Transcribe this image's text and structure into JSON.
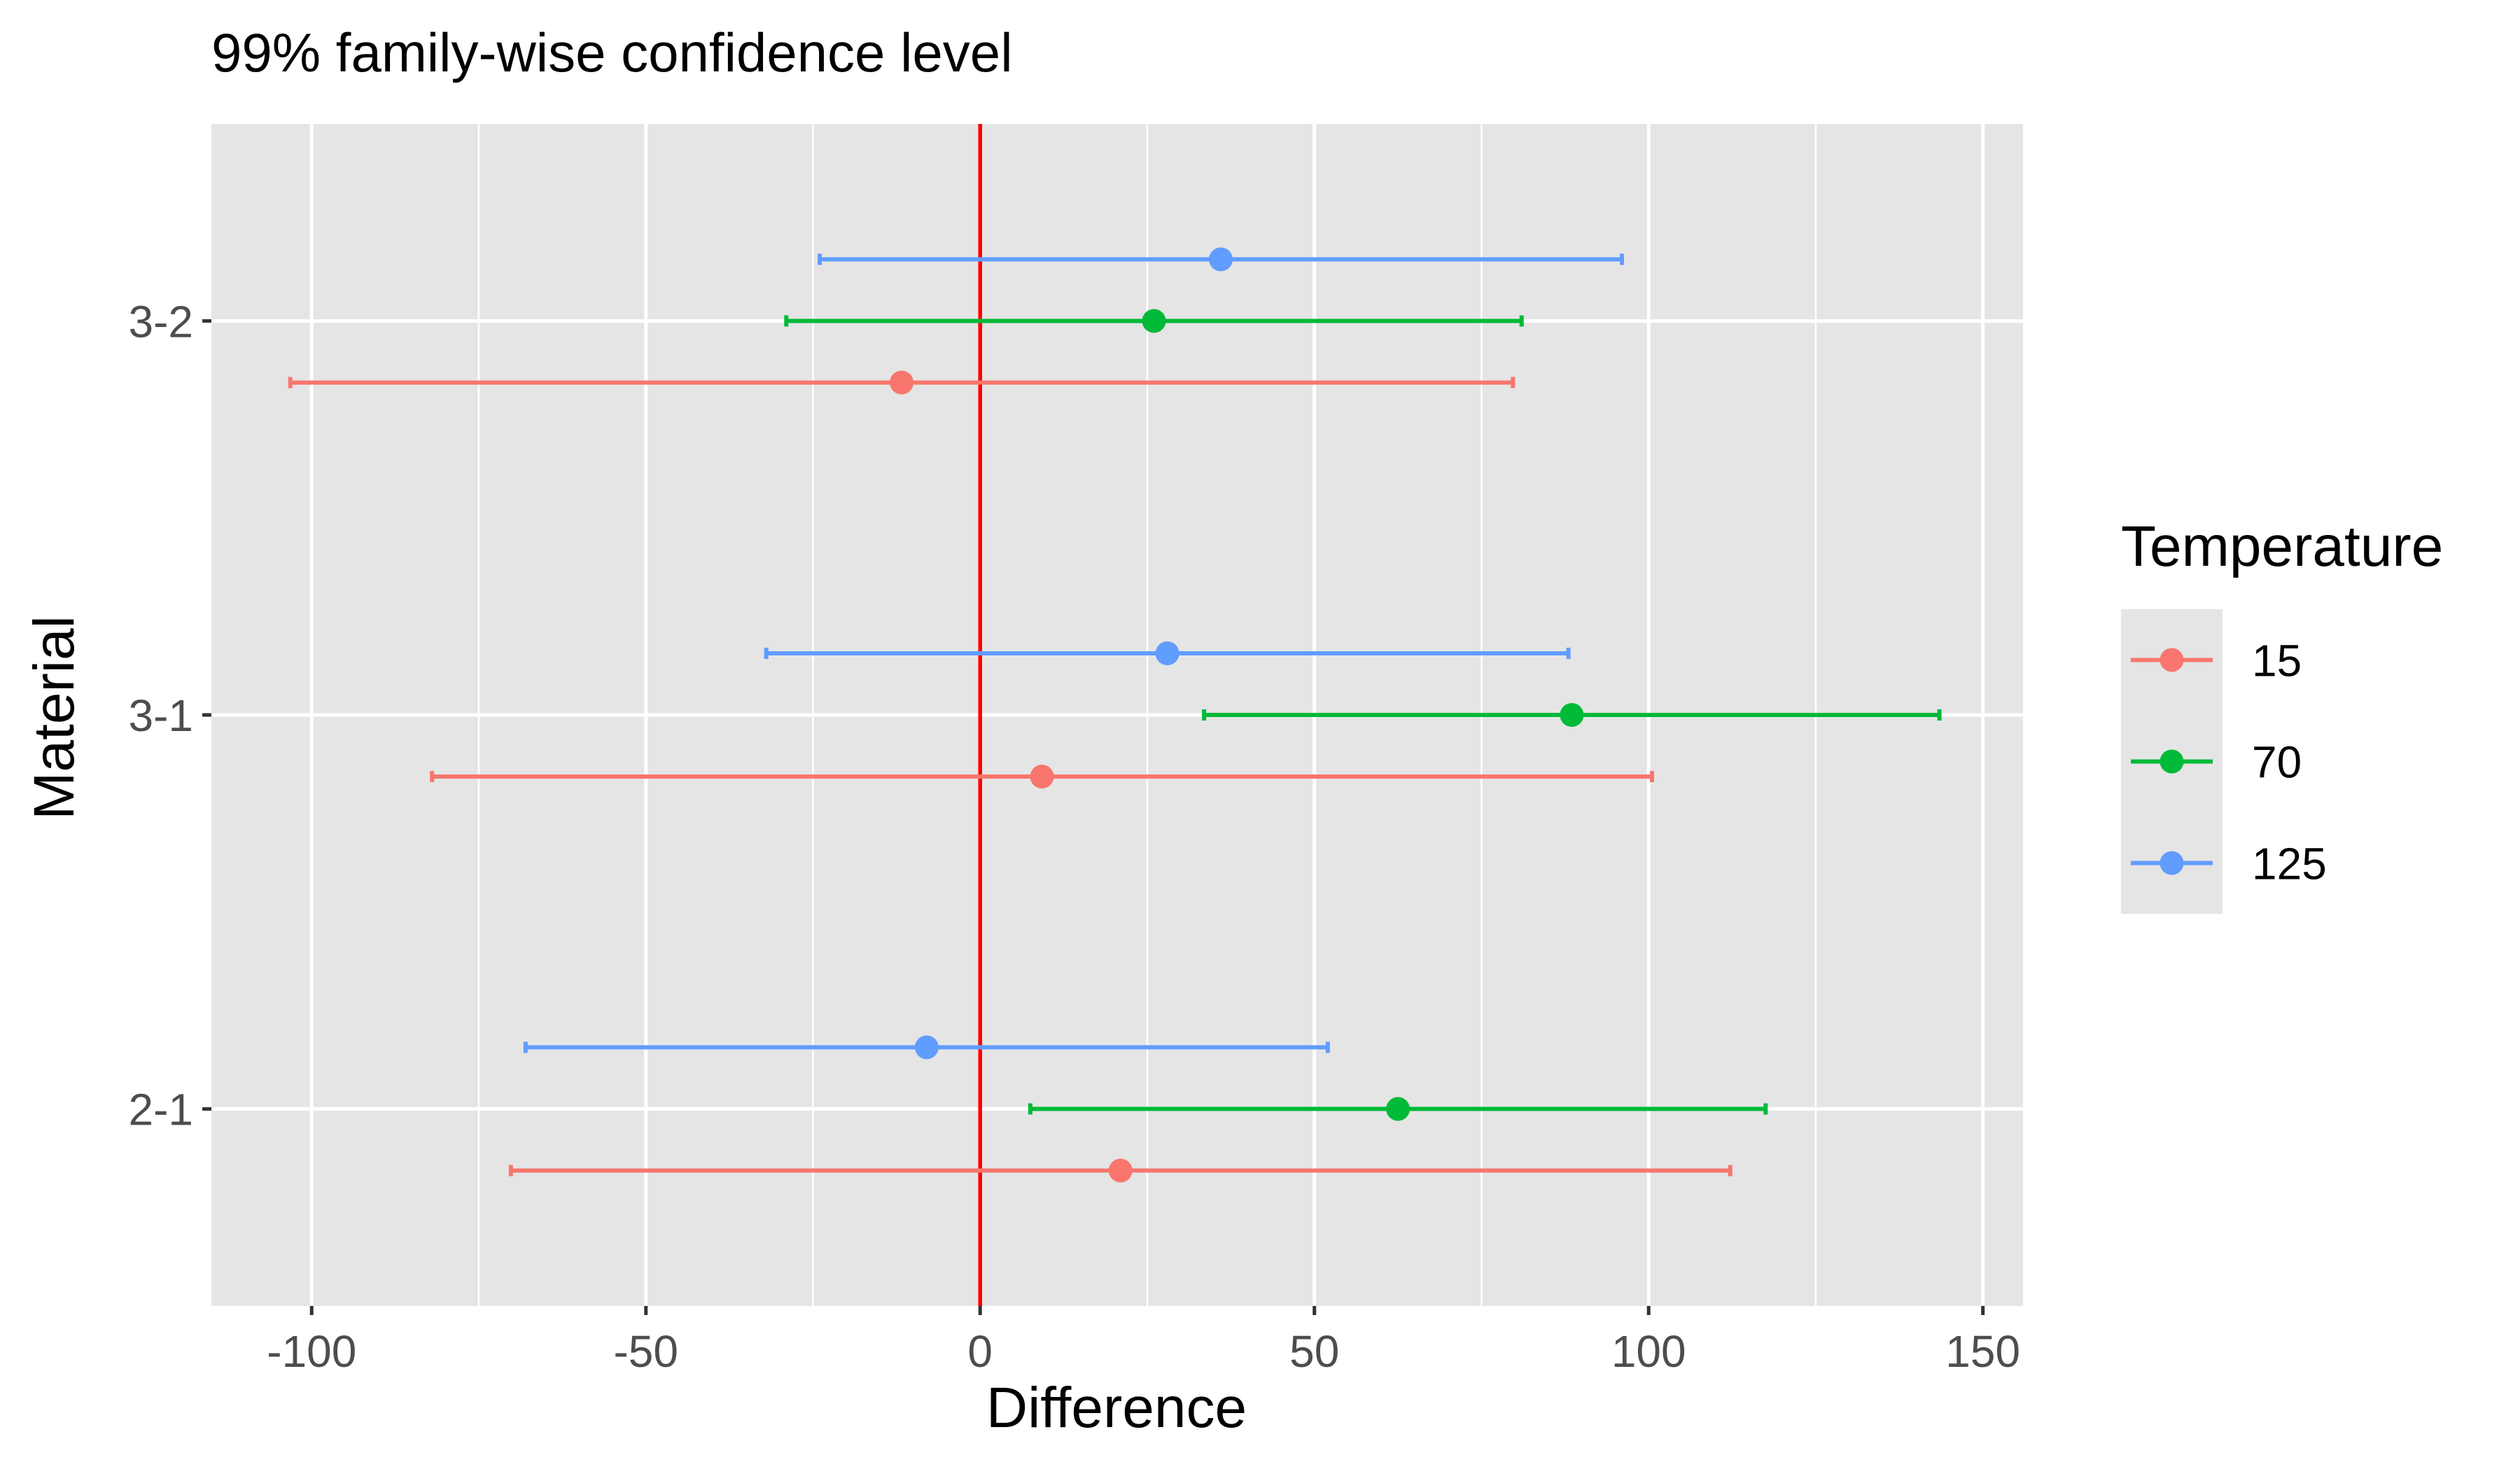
{
  "chart_data": {
    "type": "errorbar",
    "title": "99% family-wise confidence level",
    "xlabel": "Difference",
    "ylabel": "Material",
    "xlim": [
      -115,
      156
    ],
    "xticks": [
      -100,
      -50,
      0,
      50,
      100,
      150
    ],
    "categories": [
      "2-1",
      "3-1",
      "3-2"
    ],
    "reference_line": {
      "x": 0,
      "color": "#FF0000"
    },
    "legend": {
      "title": "Temperature",
      "position": "right"
    },
    "series": [
      {
        "name": "15",
        "color": "#F8766D",
        "estimates": [
          21.0,
          9.25,
          -11.75
        ],
        "lower": [
          -70.2,
          -82.0,
          -103.2
        ],
        "upper": [
          112.2,
          100.5,
          79.7
        ]
      },
      {
        "name": "70",
        "color": "#00BA38",
        "estimates": [
          62.5,
          88.5,
          26.0
        ],
        "lower": [
          7.5,
          33.5,
          -29.0
        ],
        "upper": [
          117.5,
          143.5,
          81.0
        ]
      },
      {
        "name": "125",
        "color": "#619CFF",
        "estimates": [
          -8.0,
          28.0,
          36.0
        ],
        "lower": [
          -68.0,
          -32.0,
          -24.0
        ],
        "upper": [
          52.0,
          88.0,
          96.0
        ]
      }
    ]
  }
}
